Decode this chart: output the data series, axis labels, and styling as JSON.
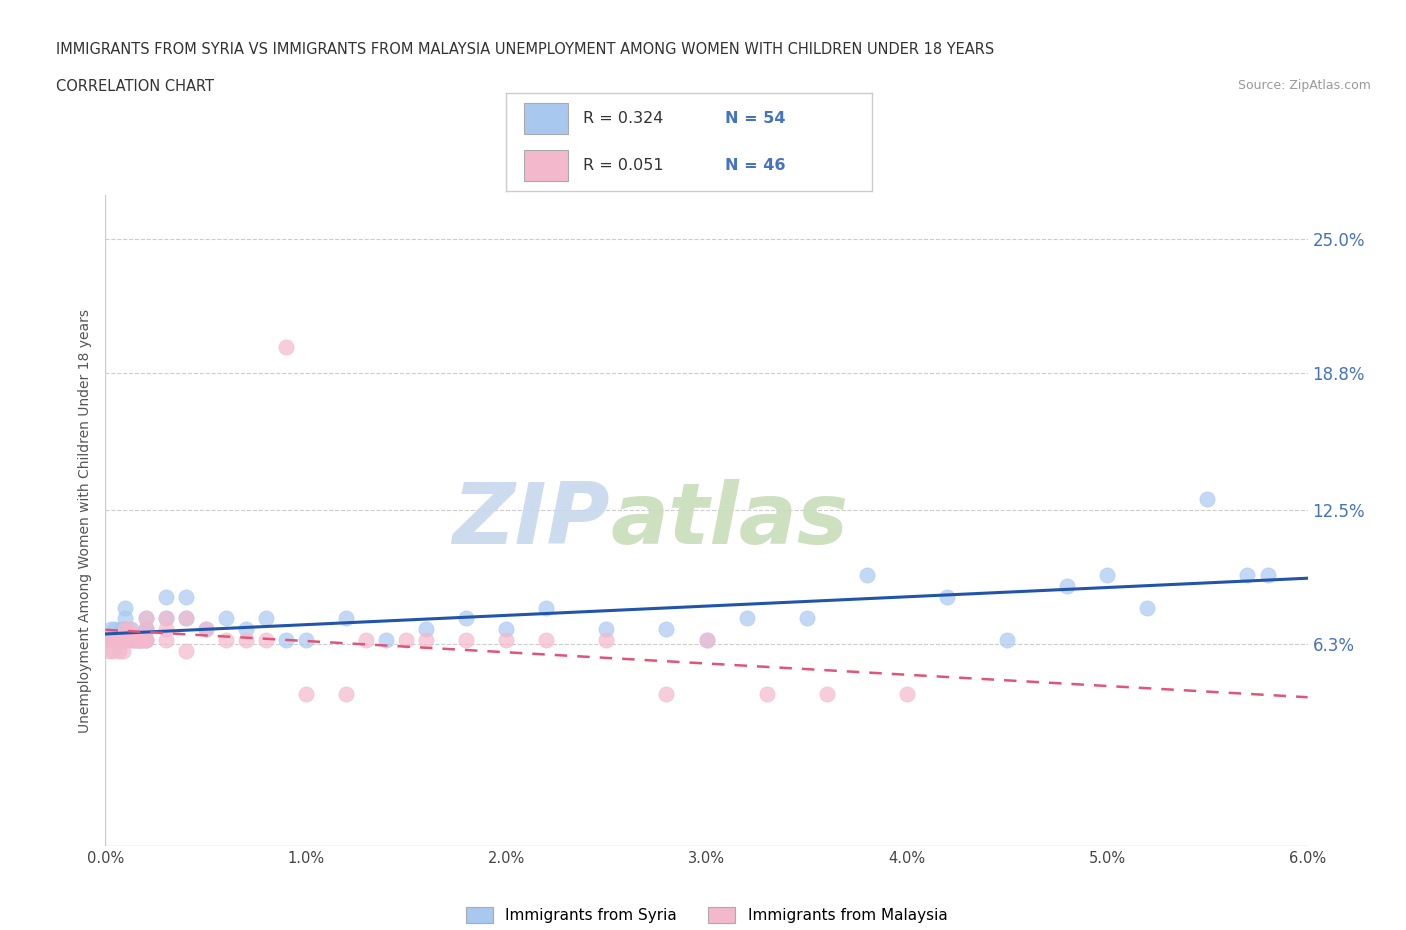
{
  "title_line1": "IMMIGRANTS FROM SYRIA VS IMMIGRANTS FROM MALAYSIA UNEMPLOYMENT AMONG WOMEN WITH CHILDREN UNDER 18 YEARS",
  "title_line2": "CORRELATION CHART",
  "source_text": "Source: ZipAtlas.com",
  "ylabel": "Unemployment Among Women with Children Under 18 years",
  "xlim": [
    0.0,
    0.06
  ],
  "ylim": [
    -0.03,
    0.27
  ],
  "yticks": [
    0.063,
    0.125,
    0.188,
    0.25
  ],
  "ytick_labels": [
    "6.3%",
    "12.5%",
    "18.8%",
    "25.0%"
  ],
  "xticks": [
    0.0,
    0.01,
    0.02,
    0.03,
    0.04,
    0.05,
    0.06
  ],
  "xtick_labels": [
    "0.0%",
    "1.0%",
    "2.0%",
    "3.0%",
    "4.0%",
    "5.0%",
    "6.0%"
  ],
  "syria_color": "#a8c8f0",
  "malaysia_color": "#f4b8cc",
  "syria_line_color": "#2255aa",
  "malaysia_line_color": "#e05575",
  "legend_label_syria": "Immigrants from Syria",
  "legend_label_malaysia": "Immigrants from Malaysia",
  "watermark_zip": "ZIP",
  "watermark_atlas": "atlas",
  "background_color": "#ffffff",
  "grid_color": "#cccccc",
  "syria_x": [
    0.0002,
    0.0003,
    0.0004,
    0.0005,
    0.0006,
    0.0007,
    0.0008,
    0.0009,
    0.001,
    0.001,
    0.001,
    0.001,
    0.001,
    0.0012,
    0.0013,
    0.0014,
    0.0015,
    0.0016,
    0.0017,
    0.0018,
    0.002,
    0.002,
    0.002,
    0.002,
    0.003,
    0.003,
    0.004,
    0.004,
    0.005,
    0.006,
    0.007,
    0.008,
    0.009,
    0.01,
    0.012,
    0.014,
    0.016,
    0.018,
    0.02,
    0.022,
    0.025,
    0.028,
    0.03,
    0.032,
    0.035,
    0.038,
    0.042,
    0.045,
    0.048,
    0.05,
    0.052,
    0.055,
    0.057,
    0.058
  ],
  "syria_y": [
    0.065,
    0.07,
    0.065,
    0.07,
    0.065,
    0.065,
    0.07,
    0.07,
    0.07,
    0.07,
    0.075,
    0.08,
    0.065,
    0.065,
    0.07,
    0.065,
    0.065,
    0.065,
    0.065,
    0.065,
    0.065,
    0.07,
    0.07,
    0.075,
    0.075,
    0.085,
    0.075,
    0.085,
    0.07,
    0.075,
    0.07,
    0.075,
    0.065,
    0.065,
    0.075,
    0.065,
    0.07,
    0.075,
    0.07,
    0.08,
    0.07,
    0.07,
    0.065,
    0.075,
    0.075,
    0.095,
    0.085,
    0.065,
    0.09,
    0.095,
    0.08,
    0.13,
    0.095,
    0.095
  ],
  "malaysia_x": [
    0.0002,
    0.0003,
    0.0004,
    0.0005,
    0.0006,
    0.0007,
    0.0008,
    0.0009,
    0.001,
    0.001,
    0.001,
    0.001,
    0.0012,
    0.0014,
    0.0015,
    0.0016,
    0.0017,
    0.0018,
    0.002,
    0.002,
    0.002,
    0.002,
    0.003,
    0.003,
    0.003,
    0.004,
    0.004,
    0.005,
    0.006,
    0.007,
    0.008,
    0.009,
    0.01,
    0.012,
    0.013,
    0.015,
    0.016,
    0.018,
    0.02,
    0.022,
    0.025,
    0.028,
    0.03,
    0.033,
    0.036,
    0.04
  ],
  "malaysia_y": [
    0.06,
    0.065,
    0.06,
    0.065,
    0.065,
    0.06,
    0.065,
    0.06,
    0.065,
    0.065,
    0.065,
    0.07,
    0.07,
    0.065,
    0.065,
    0.065,
    0.065,
    0.065,
    0.065,
    0.065,
    0.07,
    0.075,
    0.065,
    0.07,
    0.075,
    0.06,
    0.075,
    0.07,
    0.065,
    0.065,
    0.065,
    0.2,
    0.04,
    0.04,
    0.065,
    0.065,
    0.065,
    0.065,
    0.065,
    0.065,
    0.065,
    0.04,
    0.065,
    0.04,
    0.04,
    0.04
  ]
}
